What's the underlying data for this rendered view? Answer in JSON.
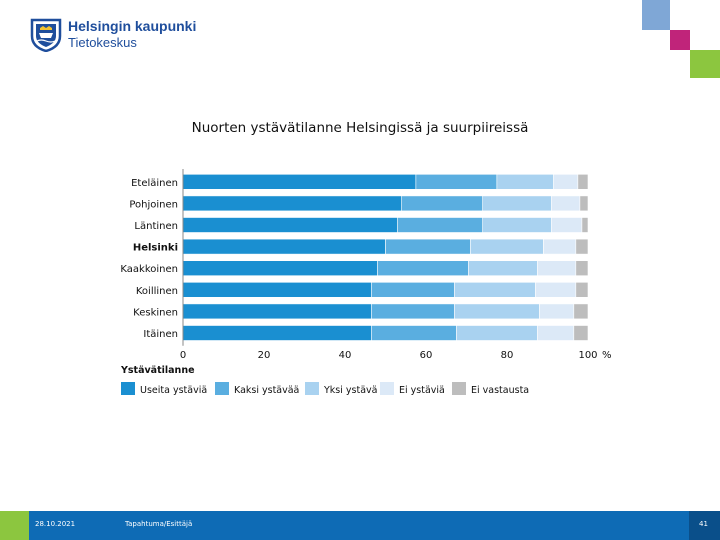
{
  "header": {
    "logo_title": "Helsingin kaupunki",
    "logo_subtitle": "Tietokeskus"
  },
  "colors": {
    "deco_blue": "#7fa7d6",
    "deco_magenta": "#c0247a",
    "deco_green": "#8cc63f",
    "footer_blue": "#0e6bb5"
  },
  "chart_data": {
    "type": "bar",
    "orientation": "horizontal",
    "stacked": true,
    "title": "Nuorten ystävätilanne Helsingissä ja suurpiireissä",
    "categories": [
      "Eteläinen",
      "Pohjoinen",
      "Läntinen",
      "Helsinki",
      "Kaakkoinen",
      "Koillinen",
      "Keskinen",
      "Itäinen"
    ],
    "bold_categories": [
      "Helsinki"
    ],
    "series": [
      {
        "name": "Useita ystäviä",
        "color": "#1a8fd1",
        "values": [
          57.5,
          54,
          53,
          50,
          48,
          46.5,
          46.5,
          46.5
        ]
      },
      {
        "name": "Kaksi ystävää",
        "color": "#5aaee0",
        "values": [
          20,
          20,
          21,
          21,
          22.5,
          20.5,
          20.5,
          21
        ]
      },
      {
        "name": "Yksi ystävä",
        "color": "#a9d2f0",
        "values": [
          14,
          17,
          17,
          18,
          17,
          20,
          21,
          20
        ]
      },
      {
        "name": "Ei ystäviä",
        "color": "#dce9f7",
        "values": [
          6,
          7,
          7.5,
          8,
          9.5,
          10,
          8.5,
          9
        ]
      },
      {
        "name": "Ei vastausta",
        "color": "#bdbdbd",
        "values": [
          2.5,
          2,
          1.5,
          3,
          3,
          3,
          3.5,
          3.5
        ]
      }
    ],
    "xlim": [
      0,
      100
    ],
    "xticks": [
      0,
      20,
      40,
      60,
      80,
      100
    ],
    "xunit": "%",
    "legend_title": "Ystävätilanne",
    "legend_position": "bottom-left"
  },
  "footer": {
    "date": "28.10.2021",
    "event": "Tapahtuma/Esittäjä",
    "page": "41"
  }
}
